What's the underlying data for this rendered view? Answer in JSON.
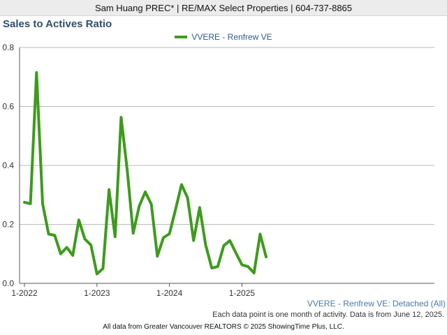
{
  "header": {
    "text": "Sam Huang PREC* | RE/MAX Select Properties | 604-737-8865"
  },
  "colors": {
    "line": "#3e9b1d",
    "title": "#2f4f6e",
    "grid": "#bbbbbb"
  },
  "chart_data": {
    "type": "line",
    "title": "Sales to Actives Ratio",
    "series_name": "VVERE - Renfrew VE",
    "ylim": [
      0,
      0.8
    ],
    "yticks": [
      "0.0",
      "0.2",
      "0.4",
      "0.6",
      "0.8"
    ],
    "xticks": [
      "1-2022",
      "1-2023",
      "1-2024",
      "1-2025"
    ],
    "start": "2022-01",
    "series": [
      {
        "name": "VVERE - Renfrew VE",
        "values": [
          0.275,
          0.27,
          0.715,
          0.27,
          0.167,
          0.163,
          0.1,
          0.122,
          0.095,
          0.215,
          0.15,
          0.13,
          0.032,
          0.05,
          0.318,
          0.158,
          0.563,
          0.385,
          0.17,
          0.262,
          0.31,
          0.268,
          0.092,
          0.155,
          0.168,
          0.25,
          0.335,
          0.29,
          0.145,
          0.257,
          0.13,
          0.052,
          0.057,
          0.128,
          0.145,
          0.103,
          0.063,
          0.057,
          0.035,
          0.167,
          0.09
        ]
      }
    ],
    "grid": true,
    "legend": "top-center"
  },
  "footer": {
    "series_label": "VVERE - Renfrew VE: Detached (All)",
    "note": "Each data point is one month of activity. Data is from June 12, 2025.",
    "credit": "All data from Greater Vancouver REALTORS © 2025 ShowingTime Plus, LLC."
  }
}
